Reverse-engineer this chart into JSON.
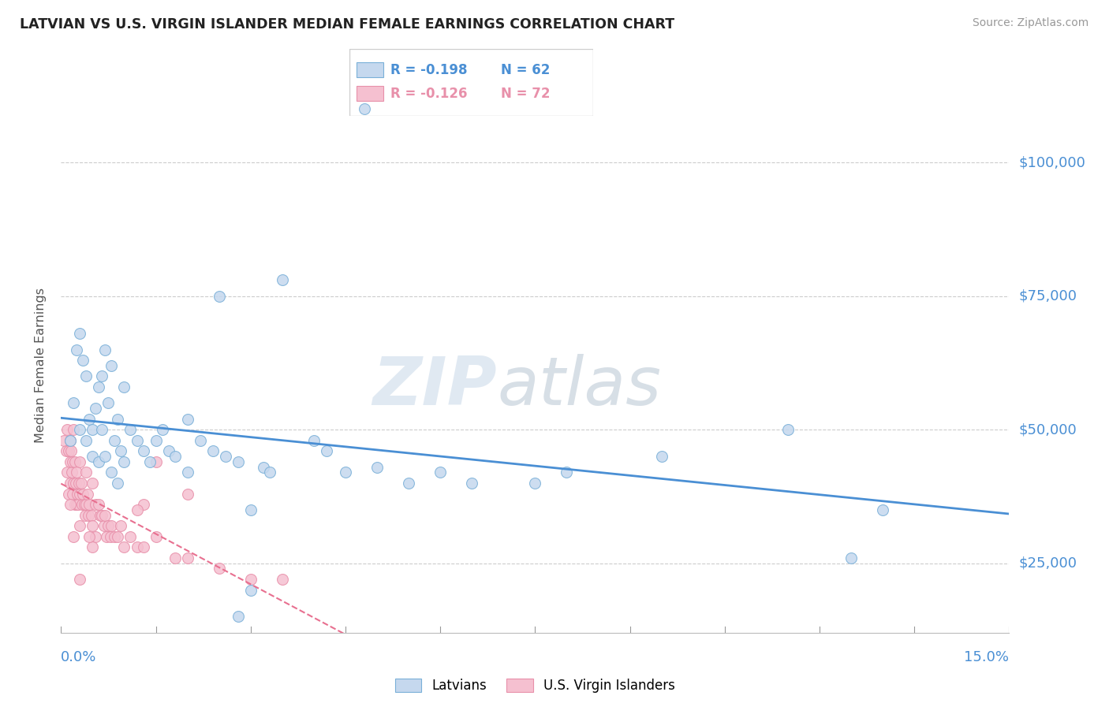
{
  "title": "LATVIAN VS U.S. VIRGIN ISLANDER MEDIAN FEMALE EARNINGS CORRELATION CHART",
  "source": "Source: ZipAtlas.com",
  "ylabel": "Median Female Earnings",
  "ytick_labels": [
    "$25,000",
    "$50,000",
    "$75,000",
    "$100,000"
  ],
  "ytick_values": [
    25000,
    50000,
    75000,
    100000
  ],
  "xmin": 0.0,
  "xmax": 15.0,
  "ymin": 12000,
  "ymax": 112000,
  "latvian_fill": "#c5d8ee",
  "latvian_edge": "#7ab0d8",
  "usvi_fill": "#f5c0d0",
  "usvi_edge": "#e890aa",
  "latvian_line_color": "#4a8fd4",
  "usvi_line_color": "#e87090",
  "legend_R1": "R = -0.198",
  "legend_N1": "N = 62",
  "legend_R2": "R = -0.126",
  "legend_N2": "N = 72",
  "legend_label1": "Latvians",
  "legend_label2": "U.S. Virgin Islanders",
  "watermark_zip": "ZIP",
  "watermark_atlas": "atlas",
  "title_color": "#222222",
  "axis_value_color": "#4a8fd4",
  "grid_color": "#cccccc",
  "latvian_scatter_x": [
    0.15,
    0.2,
    0.25,
    0.3,
    0.3,
    0.35,
    0.4,
    0.4,
    0.45,
    0.5,
    0.5,
    0.55,
    0.6,
    0.6,
    0.65,
    0.65,
    0.7,
    0.7,
    0.75,
    0.8,
    0.8,
    0.85,
    0.9,
    0.9,
    0.95,
    1.0,
    1.0,
    1.1,
    1.2,
    1.3,
    1.4,
    1.5,
    1.6,
    1.7,
    1.8,
    2.0,
    2.0,
    2.2,
    2.4,
    2.5,
    2.6,
    2.8,
    3.0,
    3.2,
    3.5,
    4.0,
    4.5,
    4.8,
    3.0,
    5.0,
    6.0,
    6.5,
    7.5,
    8.0,
    9.5,
    11.5,
    12.5,
    13.0,
    4.2,
    5.5,
    3.3,
    2.8
  ],
  "latvian_scatter_y": [
    48000,
    55000,
    65000,
    68000,
    50000,
    63000,
    60000,
    48000,
    52000,
    50000,
    45000,
    54000,
    58000,
    44000,
    60000,
    50000,
    65000,
    45000,
    55000,
    62000,
    42000,
    48000,
    52000,
    40000,
    46000,
    58000,
    44000,
    50000,
    48000,
    46000,
    44000,
    48000,
    50000,
    46000,
    45000,
    52000,
    42000,
    48000,
    46000,
    75000,
    45000,
    44000,
    20000,
    43000,
    78000,
    48000,
    42000,
    110000,
    35000,
    43000,
    42000,
    40000,
    40000,
    42000,
    45000,
    50000,
    26000,
    35000,
    46000,
    40000,
    42000,
    15000
  ],
  "usvi_scatter_x": [
    0.05,
    0.08,
    0.1,
    0.1,
    0.12,
    0.12,
    0.14,
    0.15,
    0.15,
    0.16,
    0.17,
    0.18,
    0.18,
    0.2,
    0.2,
    0.22,
    0.22,
    0.23,
    0.25,
    0.25,
    0.26,
    0.27,
    0.28,
    0.3,
    0.3,
    0.3,
    0.32,
    0.33,
    0.35,
    0.37,
    0.38,
    0.4,
    0.4,
    0.42,
    0.43,
    0.45,
    0.48,
    0.5,
    0.5,
    0.55,
    0.55,
    0.6,
    0.62,
    0.65,
    0.68,
    0.7,
    0.72,
    0.75,
    0.78,
    0.8,
    0.85,
    0.9,
    0.95,
    1.0,
    1.1,
    1.2,
    1.3,
    1.3,
    1.5,
    1.8,
    2.0,
    2.5,
    3.0,
    3.5,
    1.5,
    2.0,
    0.3,
    1.2,
    0.5,
    0.45,
    0.2,
    0.15
  ],
  "usvi_scatter_y": [
    48000,
    46000,
    50000,
    42000,
    46000,
    38000,
    44000,
    48000,
    40000,
    46000,
    42000,
    44000,
    38000,
    50000,
    40000,
    44000,
    36000,
    40000,
    42000,
    36000,
    38000,
    36000,
    40000,
    44000,
    38000,
    32000,
    40000,
    36000,
    38000,
    36000,
    34000,
    42000,
    36000,
    38000,
    34000,
    36000,
    34000,
    40000,
    32000,
    36000,
    30000,
    36000,
    34000,
    34000,
    32000,
    34000,
    30000,
    32000,
    30000,
    32000,
    30000,
    30000,
    32000,
    28000,
    30000,
    28000,
    36000,
    28000,
    30000,
    26000,
    26000,
    24000,
    22000,
    22000,
    44000,
    38000,
    22000,
    35000,
    28000,
    30000,
    30000,
    36000
  ]
}
